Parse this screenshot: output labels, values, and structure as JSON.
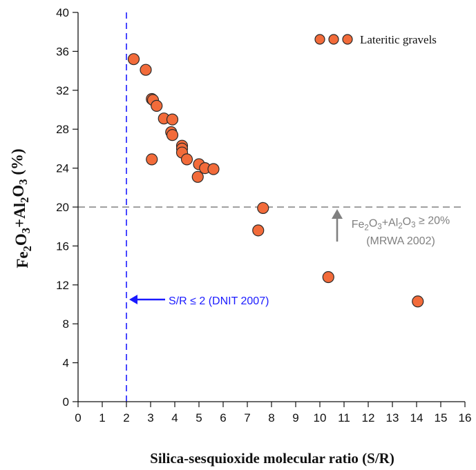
{
  "chart_data": {
    "type": "scatter",
    "title": "",
    "xlabel": "Silica-sesquioxide molecular ratio (S/R)",
    "ylabel_parts": [
      {
        "t": "Fe"
      },
      {
        "t": "2",
        "sub": true
      },
      {
        "t": "O"
      },
      {
        "t": "3",
        "sub": true
      },
      {
        "t": "+Al"
      },
      {
        "t": "2",
        "sub": true
      },
      {
        "t": "O"
      },
      {
        "t": "3",
        "sub": true
      },
      {
        "t": " (%)"
      }
    ],
    "xlim": [
      0,
      16
    ],
    "ylim": [
      0,
      40
    ],
    "xticks": [
      0,
      1,
      2,
      3,
      4,
      5,
      6,
      7,
      8,
      9,
      10,
      11,
      12,
      13,
      14,
      15,
      16
    ],
    "yticks": [
      0,
      4,
      8,
      12,
      16,
      20,
      24,
      28,
      32,
      36,
      40
    ],
    "grid": false,
    "legend_position": "top-right",
    "series": [
      {
        "name": "Lateritic gravels",
        "color": "#f26b3a",
        "points": [
          [
            2.3,
            35.2
          ],
          [
            2.8,
            34.1
          ],
          [
            3.05,
            31.1
          ],
          [
            3.1,
            31.0
          ],
          [
            3.25,
            30.4
          ],
          [
            3.55,
            29.1
          ],
          [
            3.9,
            29.0
          ],
          [
            3.85,
            27.7
          ],
          [
            3.9,
            27.4
          ],
          [
            3.05,
            24.9
          ],
          [
            4.3,
            26.3
          ],
          [
            4.3,
            26.0
          ],
          [
            4.3,
            25.6
          ],
          [
            4.5,
            24.9
          ],
          [
            5.0,
            24.4
          ],
          [
            5.25,
            24.0
          ],
          [
            5.6,
            23.9
          ],
          [
            4.95,
            23.1
          ],
          [
            7.65,
            19.9
          ],
          [
            7.45,
            17.6
          ],
          [
            10.35,
            12.8
          ],
          [
            14.05,
            10.3
          ]
        ]
      }
    ],
    "reference_lines": [
      {
        "orientation": "vertical",
        "value": 2,
        "color": "#1a1aff"
      },
      {
        "orientation": "horizontal",
        "value": 20,
        "color": "#808080"
      }
    ],
    "annotations": {
      "dnit": {
        "label": "S/R ≤ 2 (DNIT 2007)",
        "color": "#1a1aff"
      },
      "mrwa": {
        "line1_parts": [
          {
            "t": "Fe"
          },
          {
            "t": "2",
            "sub": true
          },
          {
            "t": "O"
          },
          {
            "t": "3",
            "sub": true
          },
          {
            "t": "+Al"
          },
          {
            "t": "2",
            "sub": true
          },
          {
            "t": "O"
          },
          {
            "t": "3",
            "sub": true
          },
          {
            "t": " ≥ 20%"
          }
        ],
        "line2": "(MRWA 2002)",
        "color": "#808080"
      }
    }
  }
}
